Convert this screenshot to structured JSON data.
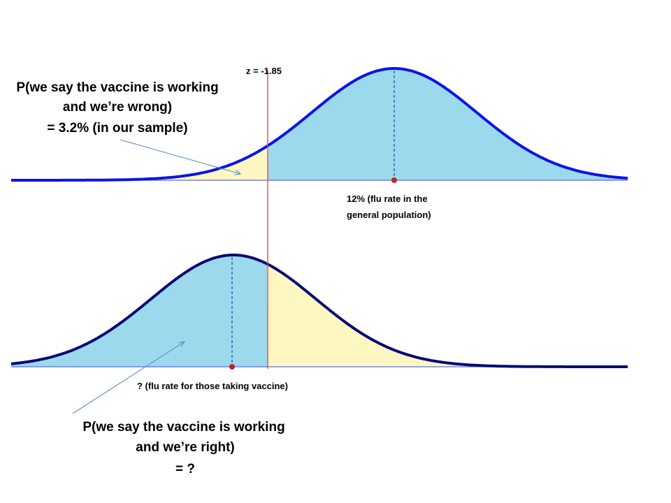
{
  "top_panel": {
    "z_label": "z = -1.85",
    "mean_label": {
      "line1": "12% (flu rate in the",
      "line2": "general population)"
    },
    "annotation": {
      "line1": "P(we say the vaccine is working",
      "line2": "and we’re wrong)",
      "line3": "= 3.2% (in our sample)"
    }
  },
  "bottom_panel": {
    "mean_label": "? (flu rate for those taking vaccine)",
    "annotation": {
      "line1": "P(we say the vaccine is working",
      "line2": "and we’re right)",
      "line3": "= ?"
    }
  },
  "colors": {
    "blue_fill": "#9dd9ec",
    "yellow_fill": "#fff7c2",
    "top_curve": "#0a14e6",
    "bottom_curve": "#0a0a73",
    "axis": "#5a6fd6",
    "cutoff_line": "#e8464b",
    "mean_dot": "#d81e1e",
    "dashed": "#2a34d8",
    "arrow": "#5b8fcc"
  }
}
